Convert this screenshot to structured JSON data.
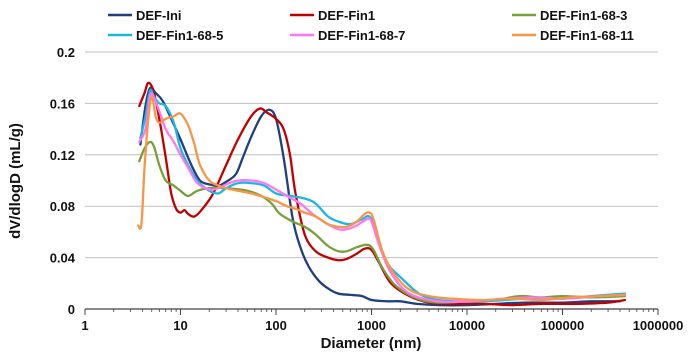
{
  "chart_data": {
    "type": "line",
    "title": "",
    "xlabel": "Diameter (nm)",
    "ylabel": "dV/dlogD (mL/g)",
    "x_scale": "log",
    "xlim": [
      1,
      1000000
    ],
    "ylim": [
      0,
      0.2
    ],
    "x_ticks": [
      1,
      10,
      100,
      1000,
      10000,
      100000,
      1000000
    ],
    "x_tick_labels": [
      "1",
      "10",
      "100",
      "1000",
      "10000",
      "100000",
      "1000000"
    ],
    "y_ticks": [
      0,
      0.04,
      0.08,
      0.12,
      0.16,
      0.2
    ],
    "y_tick_labels": [
      "0",
      "0.04",
      "0.08",
      "0.12",
      "0.16",
      "0.2"
    ],
    "grid": "horizontal",
    "legend_position": "top",
    "series": [
      {
        "name": "DEF-Ini",
        "color": "#1f3f7f",
        "points": [
          [
            3.8,
            0.128
          ],
          [
            4.3,
            0.158
          ],
          [
            4.8,
            0.172
          ],
          [
            5.5,
            0.168
          ],
          [
            6.5,
            0.162
          ],
          [
            8,
            0.148
          ],
          [
            10,
            0.132
          ],
          [
            13,
            0.112
          ],
          [
            16,
            0.1
          ],
          [
            20,
            0.097
          ],
          [
            25,
            0.096
          ],
          [
            30,
            0.099
          ],
          [
            38,
            0.105
          ],
          [
            45,
            0.118
          ],
          [
            55,
            0.134
          ],
          [
            70,
            0.15
          ],
          [
            85,
            0.155
          ],
          [
            100,
            0.148
          ],
          [
            120,
            0.118
          ],
          [
            150,
            0.07
          ],
          [
            180,
            0.048
          ],
          [
            220,
            0.033
          ],
          [
            280,
            0.022
          ],
          [
            350,
            0.016
          ],
          [
            450,
            0.012
          ],
          [
            600,
            0.011
          ],
          [
            800,
            0.01
          ],
          [
            1000,
            0.007
          ],
          [
            1500,
            0.006
          ],
          [
            2000,
            0.006
          ],
          [
            3000,
            0.004
          ],
          [
            5000,
            0.003
          ],
          [
            10000,
            0.003
          ],
          [
            20000,
            0.004
          ],
          [
            40000,
            0.005
          ],
          [
            100000,
            0.005
          ],
          [
            200000,
            0.006
          ],
          [
            400000,
            0.006
          ]
        ]
      },
      {
        "name": "DEF-Fin1",
        "color": "#c00000",
        "points": [
          [
            3.7,
            0.158
          ],
          [
            4.2,
            0.168
          ],
          [
            4.6,
            0.176
          ],
          [
            5.2,
            0.17
          ],
          [
            6,
            0.148
          ],
          [
            7,
            0.118
          ],
          [
            8,
            0.09
          ],
          [
            9,
            0.078
          ],
          [
            10,
            0.075
          ],
          [
            11,
            0.077
          ],
          [
            12,
            0.074
          ],
          [
            14,
            0.072
          ],
          [
            17,
            0.078
          ],
          [
            22,
            0.09
          ],
          [
            30,
            0.112
          ],
          [
            40,
            0.132
          ],
          [
            55,
            0.15
          ],
          [
            68,
            0.156
          ],
          [
            80,
            0.153
          ],
          [
            100,
            0.148
          ],
          [
            120,
            0.14
          ],
          [
            140,
            0.12
          ],
          [
            160,
            0.09
          ],
          [
            200,
            0.058
          ],
          [
            260,
            0.045
          ],
          [
            350,
            0.04
          ],
          [
            450,
            0.038
          ],
          [
            550,
            0.039
          ],
          [
            700,
            0.043
          ],
          [
            850,
            0.047
          ],
          [
            1000,
            0.046
          ],
          [
            1200,
            0.036
          ],
          [
            1600,
            0.02
          ],
          [
            2500,
            0.01
          ],
          [
            4000,
            0.005
          ],
          [
            7000,
            0.004
          ],
          [
            15000,
            0.004
          ],
          [
            30000,
            0.003
          ],
          [
            60000,
            0.004
          ],
          [
            150000,
            0.004
          ],
          [
            300000,
            0.005
          ],
          [
            450000,
            0.007
          ]
        ]
      },
      {
        "name": "DEF-Fin1-68-3",
        "color": "#77a03a",
        "points": [
          [
            3.7,
            0.115
          ],
          [
            4.2,
            0.125
          ],
          [
            4.8,
            0.13
          ],
          [
            5.3,
            0.126
          ],
          [
            6,
            0.112
          ],
          [
            7,
            0.1
          ],
          [
            8.5,
            0.096
          ],
          [
            10,
            0.092
          ],
          [
            12,
            0.088
          ],
          [
            15,
            0.092
          ],
          [
            20,
            0.094
          ],
          [
            30,
            0.094
          ],
          [
            50,
            0.092
          ],
          [
            70,
            0.088
          ],
          [
            90,
            0.082
          ],
          [
            110,
            0.074
          ],
          [
            150,
            0.068
          ],
          [
            200,
            0.064
          ],
          [
            260,
            0.058
          ],
          [
            350,
            0.049
          ],
          [
            450,
            0.045
          ],
          [
            550,
            0.045
          ],
          [
            700,
            0.048
          ],
          [
            900,
            0.05
          ],
          [
            1050,
            0.046
          ],
          [
            1300,
            0.032
          ],
          [
            1800,
            0.018
          ],
          [
            3000,
            0.008
          ],
          [
            5000,
            0.005
          ],
          [
            10000,
            0.006
          ],
          [
            20000,
            0.007
          ],
          [
            35000,
            0.01
          ],
          [
            60000,
            0.009
          ],
          [
            100000,
            0.01
          ],
          [
            200000,
            0.009
          ],
          [
            450000,
            0.01
          ]
        ]
      },
      {
        "name": "DEF-Fin1-68-5",
        "color": "#1cb5e6",
        "points": [
          [
            3.8,
            0.133
          ],
          [
            4.3,
            0.15
          ],
          [
            4.8,
            0.17
          ],
          [
            5.3,
            0.165
          ],
          [
            6,
            0.16
          ],
          [
            7,
            0.158
          ],
          [
            8.5,
            0.145
          ],
          [
            10,
            0.125
          ],
          [
            12,
            0.112
          ],
          [
            15,
            0.1
          ],
          [
            20,
            0.092
          ],
          [
            25,
            0.09
          ],
          [
            30,
            0.094
          ],
          [
            40,
            0.098
          ],
          [
            55,
            0.098
          ],
          [
            75,
            0.096
          ],
          [
            100,
            0.09
          ],
          [
            140,
            0.088
          ],
          [
            200,
            0.086
          ],
          [
            260,
            0.082
          ],
          [
            350,
            0.072
          ],
          [
            450,
            0.068
          ],
          [
            600,
            0.066
          ],
          [
            800,
            0.07
          ],
          [
            950,
            0.072
          ],
          [
            1100,
            0.062
          ],
          [
            1400,
            0.038
          ],
          [
            2000,
            0.025
          ],
          [
            3500,
            0.01
          ],
          [
            7000,
            0.006
          ],
          [
            15000,
            0.006
          ],
          [
            40000,
            0.008
          ],
          [
            100000,
            0.008
          ],
          [
            200000,
            0.01
          ],
          [
            450000,
            0.012
          ]
        ]
      },
      {
        "name": "DEF-Fin1-68-7",
        "color": "#ff77ee",
        "points": [
          [
            3.7,
            0.13
          ],
          [
            4.3,
            0.14
          ],
          [
            4.8,
            0.166
          ],
          [
            5.3,
            0.164
          ],
          [
            6,
            0.154
          ],
          [
            7,
            0.14
          ],
          [
            8.5,
            0.13
          ],
          [
            10,
            0.12
          ],
          [
            12,
            0.11
          ],
          [
            15,
            0.098
          ],
          [
            20,
            0.093
          ],
          [
            25,
            0.094
          ],
          [
            30,
            0.097
          ],
          [
            40,
            0.1
          ],
          [
            55,
            0.1
          ],
          [
            75,
            0.098
          ],
          [
            100,
            0.093
          ],
          [
            130,
            0.088
          ],
          [
            180,
            0.082
          ],
          [
            250,
            0.073
          ],
          [
            350,
            0.066
          ],
          [
            450,
            0.062
          ],
          [
            550,
            0.062
          ],
          [
            700,
            0.065
          ],
          [
            900,
            0.07
          ],
          [
            1000,
            0.068
          ],
          [
            1200,
            0.05
          ],
          [
            1600,
            0.028
          ],
          [
            2500,
            0.012
          ],
          [
            5000,
            0.006
          ],
          [
            10000,
            0.006
          ],
          [
            25000,
            0.008
          ],
          [
            50000,
            0.009
          ],
          [
            100000,
            0.008
          ],
          [
            250000,
            0.01
          ],
          [
            450000,
            0.011
          ]
        ]
      },
      {
        "name": "DEF-Fin1-68-11",
        "color": "#f79646",
        "points": [
          [
            3.6,
            0.065
          ],
          [
            3.9,
            0.066
          ],
          [
            4.2,
            0.11
          ],
          [
            4.6,
            0.148
          ],
          [
            5,
            0.165
          ],
          [
            5.5,
            0.15
          ],
          [
            6,
            0.145
          ],
          [
            7,
            0.148
          ],
          [
            8.5,
            0.15
          ],
          [
            10,
            0.152
          ],
          [
            12,
            0.143
          ],
          [
            14,
            0.128
          ],
          [
            16,
            0.112
          ],
          [
            20,
            0.1
          ],
          [
            25,
            0.096
          ],
          [
            30,
            0.094
          ],
          [
            40,
            0.092
          ],
          [
            55,
            0.09
          ],
          [
            75,
            0.087
          ],
          [
            100,
            0.084
          ],
          [
            130,
            0.08
          ],
          [
            160,
            0.078
          ],
          [
            200,
            0.075
          ],
          [
            260,
            0.072
          ],
          [
            350,
            0.066
          ],
          [
            450,
            0.064
          ],
          [
            550,
            0.064
          ],
          [
            700,
            0.068
          ],
          [
            850,
            0.074
          ],
          [
            950,
            0.075
          ],
          [
            1050,
            0.07
          ],
          [
            1300,
            0.045
          ],
          [
            1700,
            0.028
          ],
          [
            2500,
            0.015
          ],
          [
            4000,
            0.01
          ],
          [
            7000,
            0.008
          ],
          [
            15000,
            0.007
          ],
          [
            30000,
            0.008
          ],
          [
            60000,
            0.007
          ],
          [
            120000,
            0.009
          ],
          [
            250000,
            0.01
          ],
          [
            450000,
            0.011
          ]
        ]
      }
    ]
  }
}
